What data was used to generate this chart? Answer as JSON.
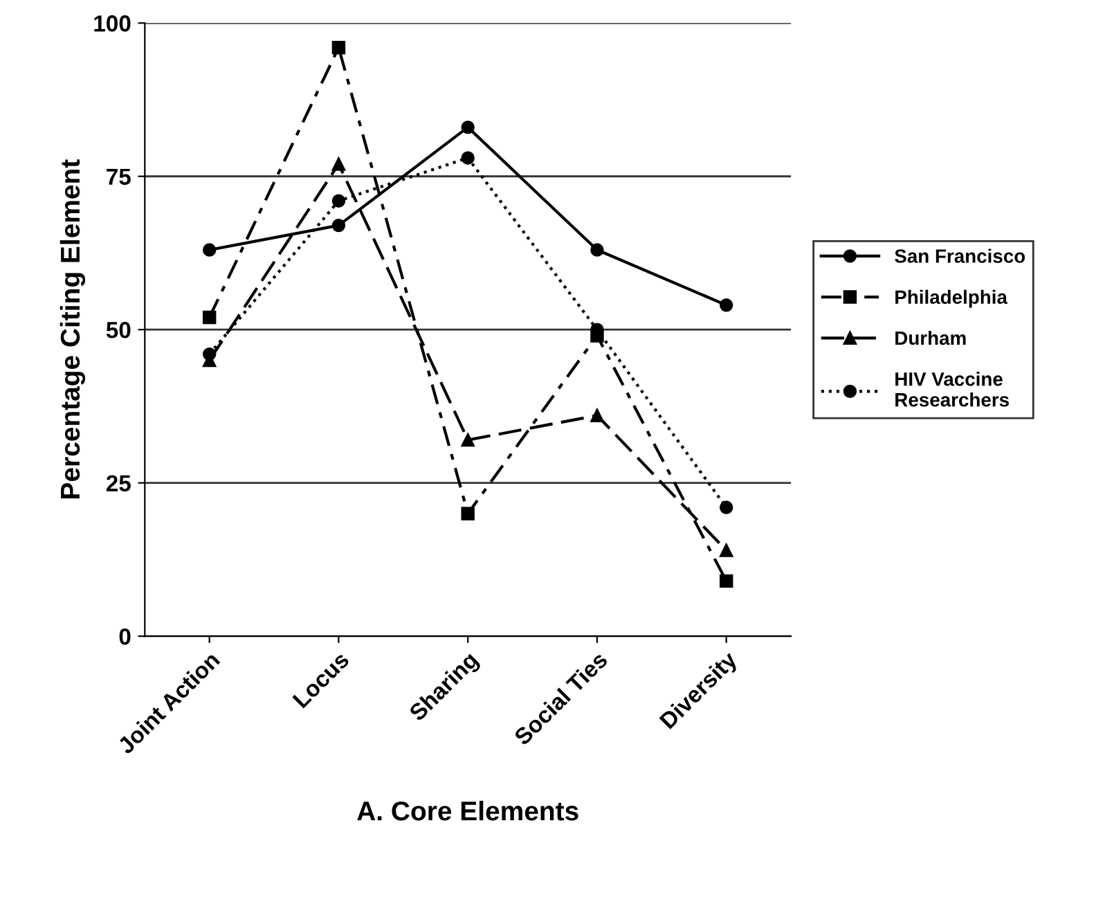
{
  "chart_data": {
    "type": "line",
    "xlabel": "A. Core Elements",
    "ylabel": "Percentage Citing Element",
    "categories": [
      "Joint Action",
      "Locus",
      "Sharing",
      "Social Ties",
      "Diversity"
    ],
    "series": [
      {
        "name": "San Francisco",
        "color": "#000000",
        "marker": "circle",
        "line_style": "solid",
        "values": [
          63,
          67,
          83,
          63,
          54
        ]
      },
      {
        "name": "Philadelphia",
        "color": "#000000",
        "marker": "square",
        "line_style": "dashed",
        "values": [
          52,
          96,
          20,
          49,
          9
        ]
      },
      {
        "name": "Durham",
        "color": "#000000",
        "marker": "triangle",
        "line_style": "dashed",
        "values": [
          45,
          77,
          32,
          36,
          14
        ]
      },
      {
        "name": "HIV Vaccine Researchers",
        "color": "#000000",
        "marker": "circle",
        "line_style": "dotted",
        "values": [
          46,
          71,
          78,
          50,
          21
        ]
      }
    ],
    "ylim": [
      0,
      100
    ],
    "yticks": [
      0,
      25,
      50,
      75,
      100
    ],
    "grid": "y",
    "legend": "right"
  }
}
